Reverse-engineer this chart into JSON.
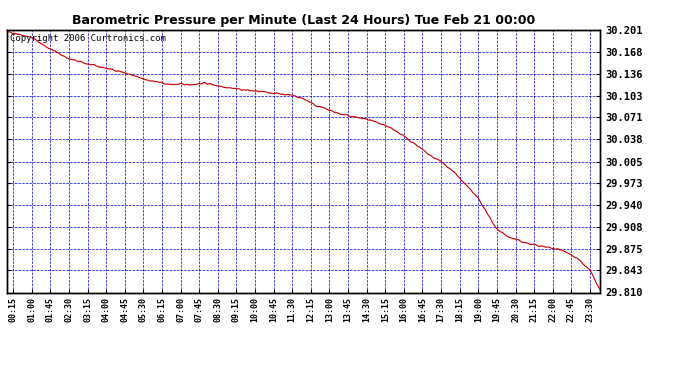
{
  "title": "Barometric Pressure per Minute (Last 24 Hours) Tue Feb 21 00:00",
  "copyright_text": "Copyright 2006 Curtronics.com",
  "plot_bg_color": "#ffffff",
  "line_color": "#cc0000",
  "grid_color": "#0000cc",
  "title_color": "#000000",
  "ytick_labels": [
    30.201,
    30.168,
    30.136,
    30.103,
    30.071,
    30.038,
    30.005,
    29.973,
    29.94,
    29.908,
    29.875,
    29.843,
    29.81
  ],
  "xtick_labels": [
    "00:15",
    "01:00",
    "01:45",
    "02:30",
    "03:15",
    "04:00",
    "04:45",
    "05:30",
    "06:15",
    "07:00",
    "07:45",
    "08:30",
    "09:15",
    "10:00",
    "10:45",
    "11:30",
    "12:15",
    "13:00",
    "13:45",
    "14:30",
    "15:15",
    "16:00",
    "16:45",
    "17:30",
    "18:15",
    "19:00",
    "19:45",
    "20:30",
    "21:15",
    "22:00",
    "22:45",
    "23:30"
  ],
  "ymin": 29.81,
  "ymax": 30.201,
  "xmin": 0,
  "xmax": 1435,
  "figwidth": 6.9,
  "figheight": 3.75,
  "ctrl_t": [
    0,
    15,
    60,
    90,
    150,
    210,
    270,
    330,
    390,
    450,
    480,
    510,
    540,
    570,
    600,
    630,
    660,
    690,
    720,
    750,
    810,
    870,
    930,
    990,
    1020,
    1050,
    1080,
    1110,
    1140,
    1155,
    1170,
    1185,
    1200,
    1215,
    1260,
    1290,
    1320,
    1350,
    1380,
    1410,
    1425,
    1435,
    1439
  ],
  "ctrl_p": [
    30.198,
    30.197,
    30.19,
    30.178,
    30.158,
    30.148,
    30.14,
    30.128,
    30.12,
    30.12,
    30.122,
    30.118,
    30.115,
    30.112,
    30.11,
    30.108,
    30.106,
    30.104,
    30.098,
    30.088,
    30.075,
    30.068,
    30.055,
    30.03,
    30.015,
    30.005,
    29.99,
    29.97,
    29.95,
    29.935,
    29.918,
    29.905,
    29.898,
    29.892,
    29.883,
    29.879,
    29.876,
    29.872,
    29.86,
    29.843,
    29.825,
    29.813,
    29.815
  ]
}
